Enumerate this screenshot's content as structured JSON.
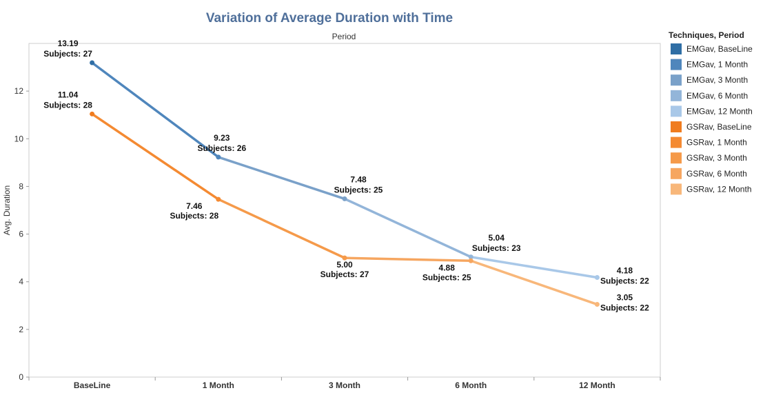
{
  "chart_data": {
    "type": "line",
    "title": "Variation of Average Duration with Time",
    "xlabel": "Period",
    "ylabel": "Avg. Duration",
    "categories": [
      "BaseLine",
      "1 Month",
      "3 Month",
      "6 Month",
      "12 Month"
    ],
    "ylim": [
      0,
      14
    ],
    "yticks": [
      0,
      2,
      4,
      6,
      8,
      10,
      12
    ],
    "series": [
      {
        "name": "EMGav",
        "values": [
          13.19,
          9.23,
          7.48,
          5.04,
          4.18
        ],
        "value_labels": [
          "13.19",
          "9.23",
          "7.48",
          "5.04",
          "4.18"
        ],
        "subject_labels": [
          "Subjects: 27",
          "Subjects: 26",
          "Subjects: 25",
          "Subjects: 23",
          "Subjects: 22"
        ],
        "colors": [
          "#2f6ea5",
          "#4f86bc",
          "#7aa1c9",
          "#93b5d9",
          "#a9c8e8"
        ]
      },
      {
        "name": "GSRav",
        "values": [
          11.04,
          7.46,
          5.0,
          4.88,
          3.05
        ],
        "value_labels": [
          "11.04",
          "7.46",
          "5.00",
          "4.88",
          "3.05"
        ],
        "subject_labels": [
          "Subjects: 28",
          "Subjects: 28",
          "Subjects: 27",
          "Subjects: 25",
          "Subjects: 22"
        ],
        "colors": [
          "#f07c1f",
          "#f48a32",
          "#f59a4a",
          "#f6a660",
          "#f8b77a"
        ]
      }
    ],
    "legend": {
      "title": "Techniques, Period",
      "position": "right",
      "entries": [
        {
          "label": "EMGav, BaseLine",
          "color": "#2f6ea5"
        },
        {
          "label": "EMGav, 1 Month",
          "color": "#4f86bc"
        },
        {
          "label": "EMGav, 3 Month",
          "color": "#7aa1c9"
        },
        {
          "label": "EMGav, 6 Month",
          "color": "#93b5d9"
        },
        {
          "label": "EMGav, 12 Month",
          "color": "#a9c8e8"
        },
        {
          "label": "GSRav, BaseLine",
          "color": "#f07c1f"
        },
        {
          "label": "GSRav, 1 Month",
          "color": "#f48a32"
        },
        {
          "label": "GSRav, 3 Month",
          "color": "#f59a4a"
        },
        {
          "label": "GSRav, 6 Month",
          "color": "#f6a660"
        },
        {
          "label": "GSRav, 12 Month",
          "color": "#f8b77a"
        }
      ]
    },
    "grid": false
  }
}
